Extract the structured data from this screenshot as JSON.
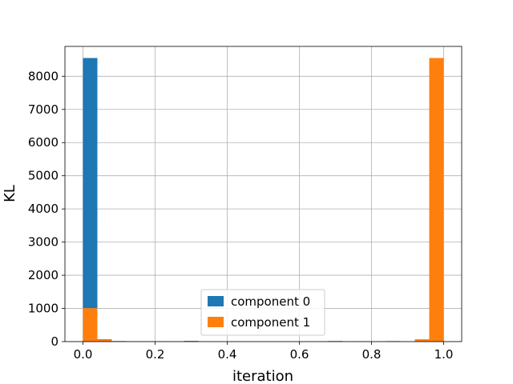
{
  "chart_data": {
    "type": "bar",
    "xlabel": "iteration",
    "ylabel": "KL",
    "xlim": [
      -0.05,
      1.05
    ],
    "ylim": [
      0,
      8900
    ],
    "xticks": [
      "0.0",
      "0.2",
      "0.4",
      "0.6",
      "0.8",
      "1.0"
    ],
    "yticks": [
      "0",
      "1000",
      "2000",
      "3000",
      "4000",
      "5000",
      "6000",
      "7000",
      "8000"
    ],
    "grid": true,
    "legend_position": "bottom-center",
    "bin_width": 0.04,
    "series": [
      {
        "name": "component 0",
        "color": "#1f77b4",
        "bins": [
          {
            "x": 0.0,
            "value": 8550
          },
          {
            "x": 0.04,
            "value": 70
          },
          {
            "x": 0.08,
            "value": 15
          },
          {
            "x": 0.12,
            "value": 10
          },
          {
            "x": 0.16,
            "value": 8
          },
          {
            "x": 0.2,
            "value": 6
          },
          {
            "x": 0.28,
            "value": 20
          },
          {
            "x": 0.68,
            "value": 10
          },
          {
            "x": 0.76,
            "value": 10
          },
          {
            "x": 0.84,
            "value": 15
          },
          {
            "x": 0.92,
            "value": 60
          },
          {
            "x": 0.96,
            "value": 1010
          }
        ]
      },
      {
        "name": "component 1",
        "color": "#ff7f0e",
        "bins": [
          {
            "x": 0.0,
            "value": 1010
          },
          {
            "x": 0.04,
            "value": 60
          },
          {
            "x": 0.08,
            "value": 15
          },
          {
            "x": 0.12,
            "value": 10
          },
          {
            "x": 0.16,
            "value": 8
          },
          {
            "x": 0.2,
            "value": 6
          },
          {
            "x": 0.68,
            "value": 20
          },
          {
            "x": 0.76,
            "value": 10
          },
          {
            "x": 0.84,
            "value": 10
          },
          {
            "x": 0.92,
            "value": 70
          },
          {
            "x": 0.96,
            "value": 8550
          }
        ]
      }
    ]
  }
}
